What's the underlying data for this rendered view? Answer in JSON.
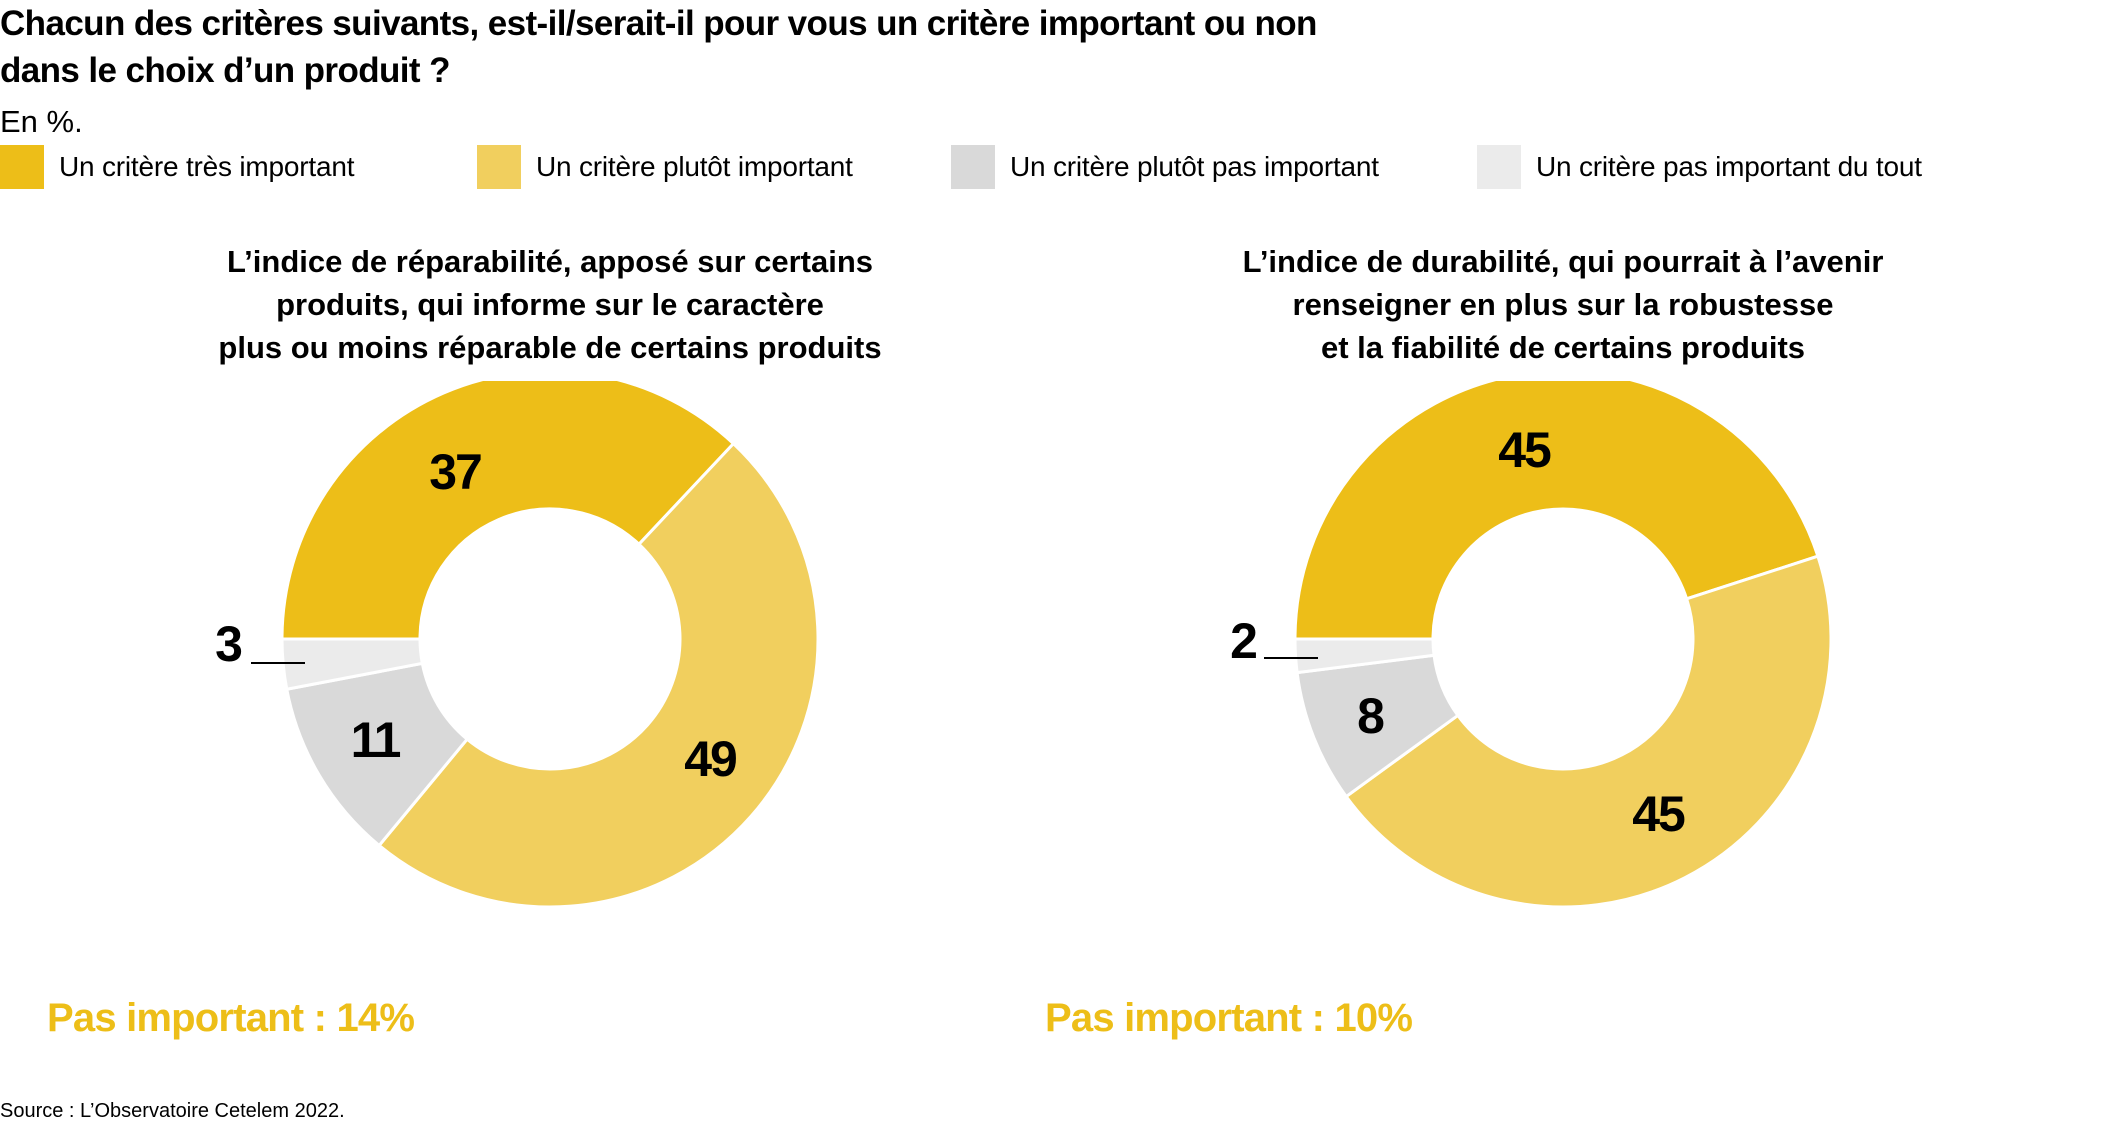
{
  "title_lines": [
    "Chacun des critères suivants, est-il/serait-il pour vous un critère important ou non",
    "dans le choix d’un produit ?"
  ],
  "unit": "En %.",
  "legend": [
    {
      "label": "Un critère très important",
      "color": "#EDBE18"
    },
    {
      "label": "Un critère plutôt important",
      "color": "#F1CF5E"
    },
    {
      "label": "Un critère plutôt pas important",
      "color": "#D9D9D9"
    },
    {
      "label": "Un critère pas important du tout",
      "color": "#EBEBEB"
    }
  ],
  "chart_data": [
    {
      "type": "pie",
      "variant": "donut",
      "title_lines": [
        "L’indice de réparabilité, apposé sur certains",
        "produits, qui informe sur le caractère",
        "plus ou moins réparable de certains produits"
      ],
      "categories": [
        "Un critère très important",
        "Un critère plutôt important",
        "Un critère plutôt pas important",
        "Un critère pas important du tout"
      ],
      "values": [
        37,
        49,
        11,
        3
      ],
      "labels": [
        "37",
        "49",
        "11",
        "3"
      ],
      "colors": [
        "#EDBE18",
        "#F1CF5E",
        "#D9D9D9",
        "#EBEBEB"
      ],
      "start": "left (9 o'clock), clockwise",
      "summary": "Pas important : 14%"
    },
    {
      "type": "pie",
      "variant": "donut",
      "title_lines": [
        "L’indice de durabilité, qui pourrait à l’avenir",
        "renseigner en plus sur la robustesse",
        "et la fiabilité de certains produits"
      ],
      "categories": [
        "Un critère très important",
        "Un critère plutôt important",
        "Un critère plutôt pas important",
        "Un critère pas important du tout"
      ],
      "values": [
        45,
        45,
        8,
        2
      ],
      "labels": [
        "45",
        "45",
        "8",
        "2"
      ],
      "colors": [
        "#EDBE18",
        "#F1CF5E",
        "#D9D9D9",
        "#EBEBEB"
      ],
      "start": "left (9 o'clock), clockwise",
      "summary": "Pas important : 10%"
    }
  ],
  "summary_color": "#EDBE18",
  "source": "Source : L’Observatoire Cetelem 2022."
}
